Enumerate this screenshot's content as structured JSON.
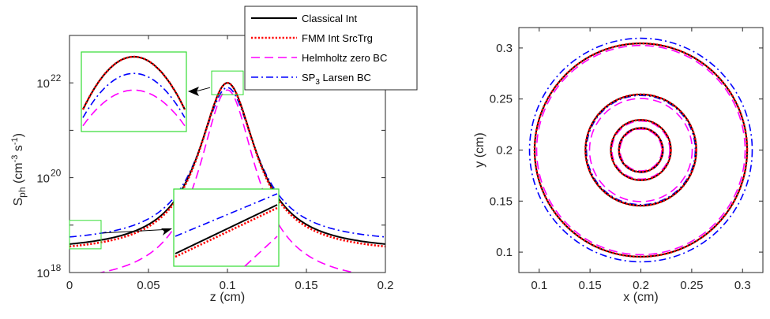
{
  "colors": {
    "classical": "#000000",
    "fmm": "#ff0000",
    "helmholtz": "#ff00ff",
    "sp3": "#0000ff",
    "inset_box": "#33dd33",
    "axes": "#262626"
  },
  "legend": {
    "items": [
      {
        "key": "classical",
        "label": "Classical Int"
      },
      {
        "key": "fmm",
        "label": "FMM Int SrcTrg"
      },
      {
        "key": "helmholtz",
        "label": "Helmholtz zero BC"
      },
      {
        "key": "sp3",
        "label_main": "SP",
        "label_sub": "3",
        "label_rest": " Larsen BC"
      }
    ],
    "placement": "top-right of left panel"
  },
  "chart_data": [
    {
      "type": "line",
      "scale_y": "log",
      "xlabel": "z (cm)",
      "ylabel": {
        "main": "S",
        "sub": "ph",
        "unit_open": " (cm",
        "sup1": "-3",
        "mid": " s",
        "sup2": "-1",
        "unit_close": ")"
      },
      "xlim": [
        0,
        0.2
      ],
      "ylim_exp": [
        18,
        23
      ],
      "xticks": [
        "0",
        "0.05",
        "0.1",
        "0.15",
        "0.2"
      ],
      "yticks": [
        {
          "base": "10",
          "exp": "18"
        },
        {
          "base": "10",
          "exp": "20"
        },
        {
          "base": "10",
          "exp": "22"
        }
      ],
      "series": [
        {
          "key": "classical",
          "name": "Classical Int",
          "log10_values": {
            "peak": 22.0,
            "at_z0": 18.6,
            "at_z0_2": 18.6
          }
        },
        {
          "key": "fmm",
          "name": "FMM Int SrcTrg",
          "log10_values": {
            "peak": 22.0,
            "at_z0": 18.55,
            "at_z0_2": 18.55
          }
        },
        {
          "key": "helmholtz",
          "name": "Helmholtz zero BC",
          "log10_values": {
            "peak": 21.85,
            "at_z0": 17.9,
            "at_z0_2": 17.9
          }
        },
        {
          "key": "sp3",
          "name": "SP3 Larsen BC",
          "log10_values": {
            "peak": 21.9,
            "at_z0": 18.75,
            "at_z0_2": 18.75
          }
        }
      ],
      "peak_z": 0.1,
      "insets": [
        {
          "name": "peak-zoom",
          "source_region": {
            "z": [
              0.09,
              0.11
            ],
            "log10_y": [
              21.8,
              22.2
            ]
          }
        },
        {
          "name": "tail-zoom",
          "source_region": {
            "z": [
              0.0,
              0.02
            ],
            "log10_y": [
              18.5,
              19.0
            ]
          }
        }
      ]
    },
    {
      "type": "line",
      "subtype": "contour",
      "xlabel": "x (cm)",
      "ylabel": "y (cm)",
      "xlim": [
        0.08,
        0.32
      ],
      "ylim": [
        0.08,
        0.32
      ],
      "xticks": [
        "0.1",
        "0.15",
        "0.2",
        "0.25",
        "0.3"
      ],
      "yticks": [
        "0.1",
        "0.15",
        "0.2",
        "0.25",
        "0.3"
      ],
      "center": [
        0.2,
        0.2
      ],
      "contour_radii": {
        "classical": [
          0.0215,
          0.0295,
          0.0545,
          0.1045
        ],
        "fmm": [
          0.0215,
          0.0295,
          0.0545,
          0.1045
        ],
        "helmholtz": [
          0.0205,
          0.0285,
          0.0505,
          0.1025
        ],
        "sp3": [
          0.022,
          0.0295,
          0.0535,
          0.1095
        ]
      }
    }
  ]
}
